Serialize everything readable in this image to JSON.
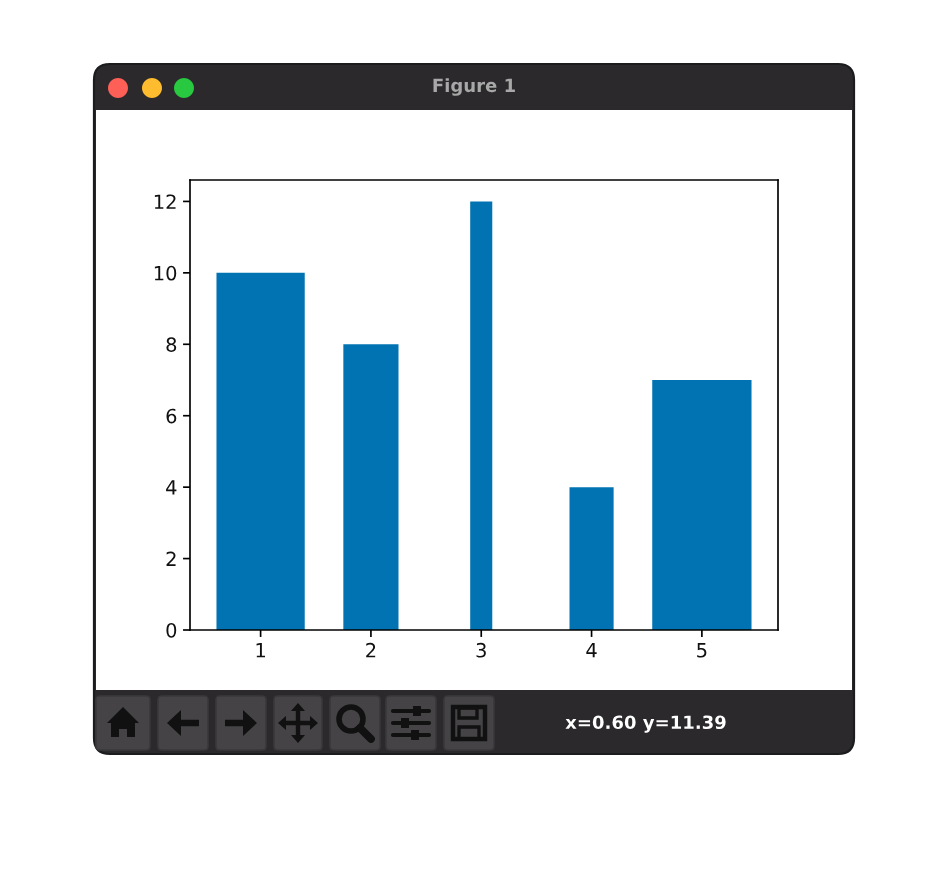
{
  "chart_data": {
    "type": "bar",
    "title": "Figure 1",
    "x": [
      1,
      2,
      3,
      4,
      5
    ],
    "values": [
      10,
      8,
      12,
      4,
      7
    ],
    "color": "#0173b2",
    "xlim": [
      0.36,
      5.69
    ],
    "xticks": [
      1,
      2,
      3,
      4,
      5
    ],
    "ylim": [
      0,
      12.6
    ],
    "yticks": [
      0,
      2,
      4,
      6,
      8,
      10,
      12
    ],
    "grid": false,
    "annotations": [
      "x=0.60 y=11.39"
    ]
  }
}
